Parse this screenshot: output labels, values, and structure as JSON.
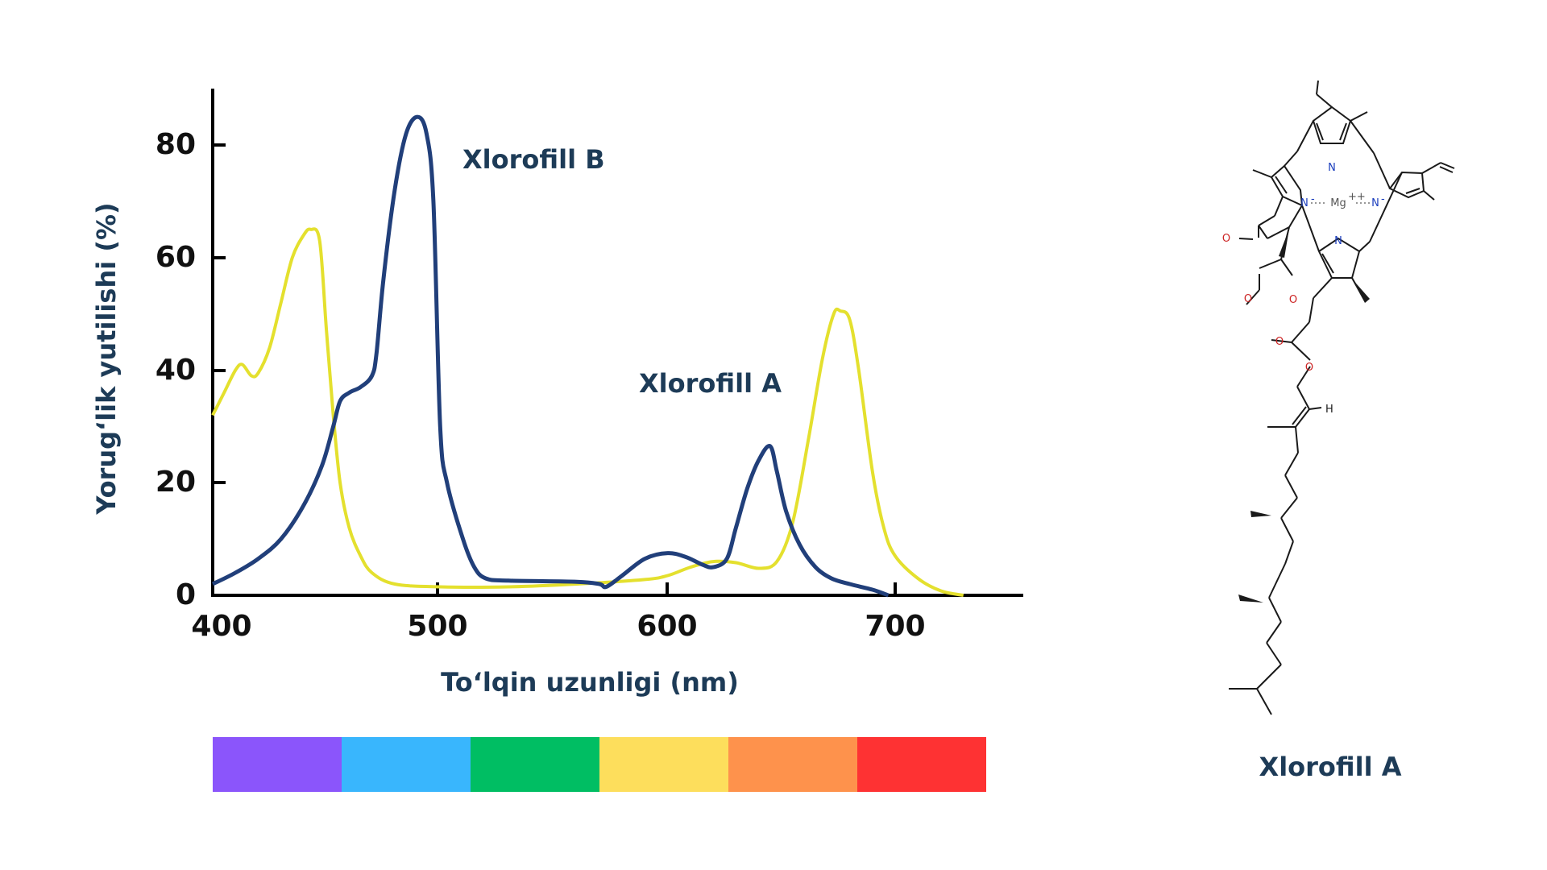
{
  "chart_data": {
    "type": "line",
    "xlabel": "To‘lqin uzunligi (nm)",
    "ylabel": "Yorug‘lik yutilishi (%)",
    "xlim": [
      400,
      755
    ],
    "ylim": [
      0,
      90
    ],
    "x_ticks": [
      "400",
      "500",
      "600",
      "700"
    ],
    "y_ticks": [
      "0",
      "20",
      "40",
      "60",
      "80"
    ],
    "grid": false,
    "series": [
      {
        "name": "Xlorofill A",
        "color": "#e4e02e",
        "points": [
          [
            400,
            32
          ],
          [
            405,
            36
          ],
          [
            410,
            40
          ],
          [
            413,
            41
          ],
          [
            417,
            39
          ],
          [
            420,
            39.5
          ],
          [
            425,
            44
          ],
          [
            430,
            52
          ],
          [
            435,
            60
          ],
          [
            440,
            64
          ],
          [
            443,
            65
          ],
          [
            447,
            63
          ],
          [
            450,
            47
          ],
          [
            453,
            32
          ],
          [
            456,
            20
          ],
          [
            460,
            12
          ],
          [
            465,
            7
          ],
          [
            470,
            4
          ],
          [
            480,
            2
          ],
          [
            500,
            1.5
          ],
          [
            530,
            1.5
          ],
          [
            560,
            2
          ],
          [
            590,
            2.8
          ],
          [
            600,
            3.5
          ],
          [
            610,
            5
          ],
          [
            620,
            6
          ],
          [
            630,
            5.8
          ],
          [
            640,
            4.8
          ],
          [
            648,
            6
          ],
          [
            655,
            13
          ],
          [
            662,
            28
          ],
          [
            668,
            42
          ],
          [
            673,
            50
          ],
          [
            676,
            50.5
          ],
          [
            680,
            49
          ],
          [
            684,
            40
          ],
          [
            690,
            22
          ],
          [
            695,
            12
          ],
          [
            700,
            7
          ],
          [
            710,
            3
          ],
          [
            720,
            0.8
          ],
          [
            730,
            0
          ]
        ]
      },
      {
        "name": "Xlorofill B",
        "color": "#213f7a",
        "points": [
          [
            400,
            2
          ],
          [
            410,
            4
          ],
          [
            420,
            6.5
          ],
          [
            430,
            10
          ],
          [
            440,
            16
          ],
          [
            448,
            23
          ],
          [
            453,
            30
          ],
          [
            456,
            34.5
          ],
          [
            460,
            36
          ],
          [
            465,
            37
          ],
          [
            470,
            39
          ],
          [
            472,
            43
          ],
          [
            475,
            56
          ],
          [
            480,
            72
          ],
          [
            485,
            82
          ],
          [
            490,
            85
          ],
          [
            494,
            82
          ],
          [
            497,
            70
          ],
          [
            500,
            30
          ],
          [
            503,
            20
          ],
          [
            510,
            10
          ],
          [
            515,
            5
          ],
          [
            520,
            3
          ],
          [
            530,
            2.6
          ],
          [
            560,
            2.4
          ],
          [
            570,
            2
          ],
          [
            573,
            1.5
          ],
          [
            580,
            3.5
          ],
          [
            590,
            6.5
          ],
          [
            600,
            7.5
          ],
          [
            608,
            6.8
          ],
          [
            615,
            5.5
          ],
          [
            620,
            5
          ],
          [
            626,
            6.5
          ],
          [
            630,
            12
          ],
          [
            635,
            19
          ],
          [
            640,
            24
          ],
          [
            645,
            26.5
          ],
          [
            648,
            22
          ],
          [
            652,
            15
          ],
          [
            658,
            9
          ],
          [
            665,
            5
          ],
          [
            672,
            3
          ],
          [
            680,
            2
          ],
          [
            690,
            1
          ],
          [
            697,
            0
          ]
        ]
      }
    ],
    "annotations": [
      "Xlorofill B",
      "Xlorofill A"
    ],
    "spectrum_colors": [
      "#8b55fb",
      "#39b6fd",
      "#00be63",
      "#fdde5c",
      "#fe924c",
      "#fe3233"
    ]
  },
  "molecule": {
    "caption": "Xlorofill A",
    "atoms": {
      "n_top": "N",
      "n_left": "N",
      "n_right": "N",
      "n_center": "N",
      "mg": "Mg",
      "charge_plus": "++",
      "charge_minus": "-",
      "o_ketone": "O",
      "o_ester1": "O",
      "o_ester2": "O",
      "o_ester3": "O",
      "o_ester4": "O",
      "h": "H"
    }
  }
}
